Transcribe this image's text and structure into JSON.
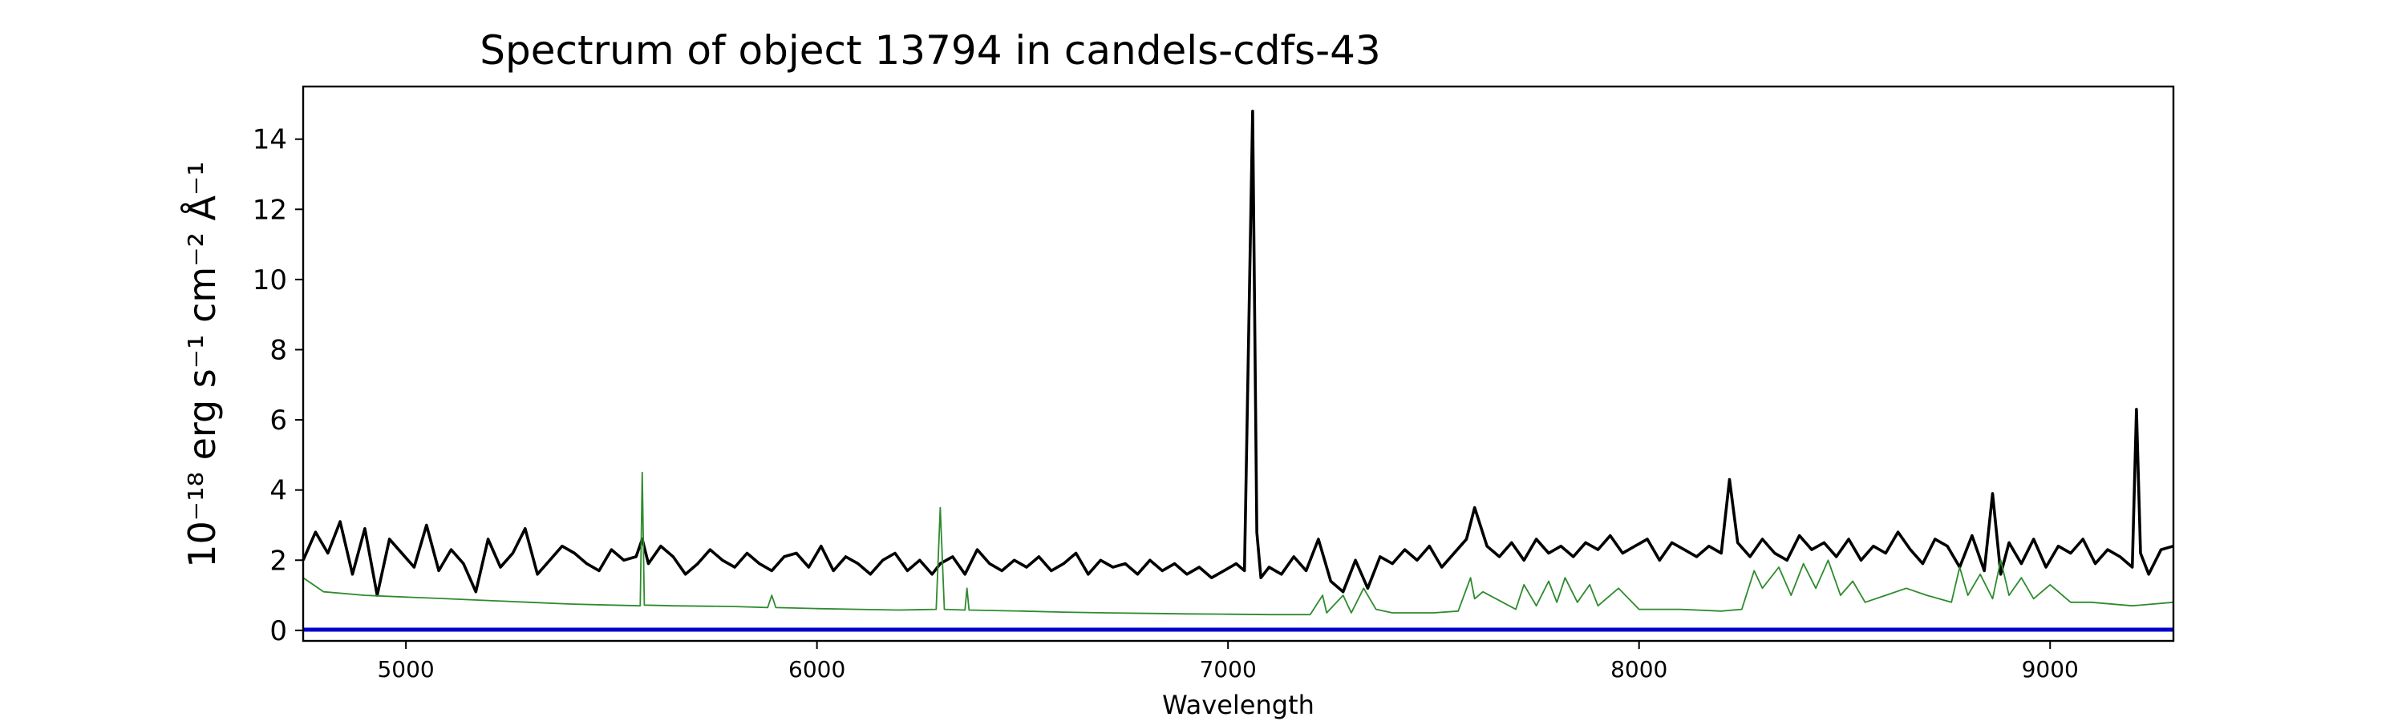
{
  "chart_data": {
    "type": "line",
    "title": "Spectrum of object 13794 in candels-cdfs-43",
    "xlabel": "Wavelength",
    "ylabel": "10⁻¹⁸ erg s⁻¹ cm⁻² Å⁻¹",
    "xlim": [
      4750,
      9300
    ],
    "ylim": [
      -0.3,
      15.5
    ],
    "x_ticks": [
      5000,
      6000,
      7000,
      8000,
      9000
    ],
    "x_tick_labels": [
      "5000",
      "6000",
      "7000",
      "8000",
      "9000"
    ],
    "y_ticks": [
      0,
      2,
      4,
      6,
      8,
      10,
      12,
      14
    ],
    "y_tick_labels": [
      "0",
      "2",
      "4",
      "6",
      "8",
      "10",
      "12",
      "14"
    ],
    "grid": false,
    "colors": {
      "flux": "#000000",
      "noise": "#2e8b2e",
      "zero_line": "#0000cc"
    },
    "series": [
      {
        "x": [
          4750,
          4780,
          4810,
          4840,
          4870,
          4900,
          4930,
          4960,
          4990,
          5020,
          5050,
          5080,
          5110,
          5140,
          5170,
          5200,
          5230,
          5260,
          5290,
          5320,
          5350,
          5380,
          5410,
          5440,
          5470,
          5500,
          5530,
          5560,
          5575,
          5590,
          5620,
          5650,
          5680,
          5710,
          5740,
          5770,
          5800,
          5830,
          5860,
          5890,
          5920,
          5950,
          5980,
          6010,
          6040,
          6070,
          6100,
          6130,
          6160,
          6190,
          6220,
          6250,
          6280,
          6300,
          6330,
          6360,
          6390,
          6420,
          6450,
          6480,
          6510,
          6540,
          6570,
          6600,
          6630,
          6660,
          6690,
          6720,
          6750,
          6780,
          6810,
          6840,
          6870,
          6900,
          6930,
          6960,
          6990,
          7020,
          7040,
          7060,
          7070,
          7080,
          7100,
          7130,
          7160,
          7190,
          7220,
          7250,
          7280,
          7310,
          7340,
          7370,
          7400,
          7430,
          7460,
          7490,
          7520,
          7550,
          7580,
          7600,
          7630,
          7660,
          7690,
          7720,
          7750,
          7780,
          7810,
          7840,
          7870,
          7900,
          7930,
          7960,
          7990,
          8020,
          8050,
          8080,
          8110,
          8140,
          8170,
          8200,
          8220,
          8240,
          8270,
          8300,
          8330,
          8360,
          8390,
          8420,
          8450,
          8480,
          8510,
          8540,
          8570,
          8600,
          8630,
          8660,
          8690,
          8720,
          8750,
          8780,
          8810,
          8840,
          8860,
          8880,
          8900,
          8930,
          8960,
          8990,
          9020,
          9050,
          9080,
          9110,
          9140,
          9170,
          9200,
          9210,
          9220,
          9240,
          9270,
          9300
        ],
        "y": [
          2.0,
          2.8,
          2.2,
          3.1,
          1.6,
          2.9,
          1.0,
          2.6,
          2.2,
          1.8,
          3.0,
          1.7,
          2.3,
          1.9,
          1.1,
          2.6,
          1.8,
          2.2,
          2.9,
          1.6,
          2.0,
          2.4,
          2.2,
          1.9,
          1.7,
          2.3,
          2.0,
          2.1,
          2.6,
          1.9,
          2.4,
          2.1,
          1.6,
          1.9,
          2.3,
          2.0,
          1.8,
          2.2,
          1.9,
          1.7,
          2.1,
          2.2,
          1.8,
          2.4,
          1.7,
          2.1,
          1.9,
          1.6,
          2.0,
          2.2,
          1.7,
          2.0,
          1.6,
          1.9,
          2.1,
          1.6,
          2.3,
          1.9,
          1.7,
          2.0,
          1.8,
          2.1,
          1.7,
          1.9,
          2.2,
          1.6,
          2.0,
          1.8,
          1.9,
          1.6,
          2.0,
          1.7,
          1.9,
          1.6,
          1.8,
          1.5,
          1.7,
          1.9,
          1.7,
          14.8,
          2.8,
          1.5,
          1.8,
          1.6,
          2.1,
          1.7,
          2.6,
          1.4,
          1.1,
          2.0,
          1.2,
          2.1,
          1.9,
          2.3,
          2.0,
          2.4,
          1.8,
          2.2,
          2.6,
          3.5,
          2.4,
          2.1,
          2.5,
          2.0,
          2.6,
          2.2,
          2.4,
          2.1,
          2.5,
          2.3,
          2.7,
          2.2,
          2.4,
          2.6,
          2.0,
          2.5,
          2.3,
          2.1,
          2.4,
          2.2,
          4.3,
          2.5,
          2.1,
          2.6,
          2.2,
          2.0,
          2.7,
          2.3,
          2.5,
          2.1,
          2.6,
          2.0,
          2.4,
          2.2,
          2.8,
          2.3,
          1.9,
          2.6,
          2.4,
          1.8,
          2.7,
          1.7,
          3.9,
          1.6,
          2.5,
          1.9,
          2.6,
          1.8,
          2.4,
          2.2,
          2.6,
          1.9,
          2.3,
          2.1,
          1.8,
          6.3,
          2.2,
          1.6,
          2.3,
          2.4
        ]
      },
      {
        "x": [
          4750,
          4800,
          4900,
          5000,
          5100,
          5200,
          5300,
          5400,
          5500,
          5570,
          5575,
          5580,
          5650,
          5800,
          5880,
          5890,
          5900,
          6000,
          6100,
          6200,
          6290,
          6300,
          6310,
          6360,
          6365,
          6370,
          6500,
          6600,
          6700,
          6830,
          6900,
          7000,
          7100,
          7200,
          7230,
          7240,
          7280,
          7300,
          7330,
          7360,
          7400,
          7500,
          7560,
          7590,
          7600,
          7620,
          7700,
          7720,
          7750,
          7780,
          7800,
          7820,
          7850,
          7880,
          7900,
          7950,
          8000,
          8100,
          8200,
          8250,
          8280,
          8300,
          8340,
          8370,
          8400,
          8430,
          8460,
          8490,
          8520,
          8550,
          8600,
          8650,
          8700,
          8760,
          8780,
          8800,
          8830,
          8860,
          8880,
          8900,
          8930,
          8960,
          9000,
          9050,
          9100,
          9200,
          9300
        ],
        "y": [
          1.5,
          1.1,
          1.0,
          0.95,
          0.9,
          0.85,
          0.8,
          0.75,
          0.72,
          0.7,
          4.5,
          0.72,
          0.7,
          0.68,
          0.65,
          1.0,
          0.65,
          0.62,
          0.6,
          0.58,
          0.6,
          3.5,
          0.6,
          0.58,
          1.2,
          0.58,
          0.55,
          0.52,
          0.5,
          0.48,
          0.47,
          0.46,
          0.45,
          0.45,
          1.0,
          0.5,
          1.0,
          0.5,
          1.2,
          0.6,
          0.5,
          0.5,
          0.55,
          1.5,
          0.9,
          1.1,
          0.6,
          1.3,
          0.7,
          1.4,
          0.8,
          1.5,
          0.8,
          1.3,
          0.7,
          1.2,
          0.6,
          0.6,
          0.55,
          0.6,
          1.7,
          1.2,
          1.8,
          1.0,
          1.9,
          1.2,
          2.0,
          1.0,
          1.4,
          0.8,
          1.0,
          1.2,
          1.0,
          0.8,
          1.8,
          1.0,
          1.6,
          0.9,
          2.0,
          1.0,
          1.5,
          0.9,
          1.3,
          0.8,
          0.8,
          0.7,
          0.8
        ]
      },
      {
        "x": [
          4750,
          9300
        ],
        "y": [
          0.02,
          0.02
        ]
      }
    ]
  }
}
